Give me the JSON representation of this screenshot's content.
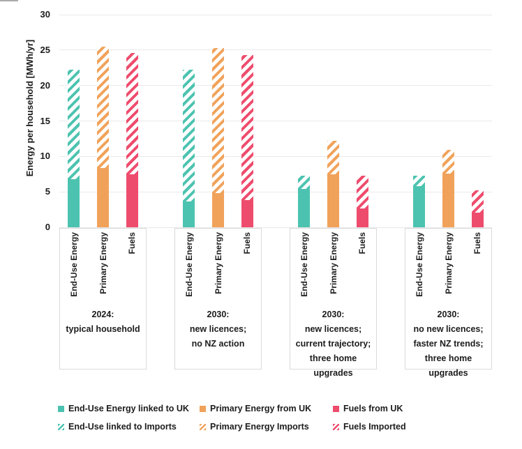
{
  "chart_data": {
    "type": "bar",
    "stacked": true,
    "title": "",
    "ylabel": "Energy per household [MWh/yr]",
    "ylim": [
      0,
      30
    ],
    "yticks": [
      0,
      5,
      10,
      15,
      20,
      25,
      30
    ],
    "grid": true,
    "legend_position": "bottom",
    "bar_categories": [
      "End-Use Energy",
      "Primary Energy",
      "Fuels"
    ],
    "series_keys": [
      "end_use",
      "primary",
      "fuels"
    ],
    "colors": {
      "end_use": "#4cc3b0",
      "primary": "#f1a25a",
      "fuels": "#ee4c6d",
      "grid": "#e9e9e9",
      "box_border": "#dadada",
      "text": "#1c1c1c"
    },
    "groups": [
      {
        "caption_lines": [
          "2024:",
          "typical household"
        ],
        "values": {
          "end_use": {
            "uk": 6.8,
            "imports": 15.4
          },
          "primary": {
            "uk": 8.4,
            "imports": 17.1
          },
          "fuels": {
            "uk": 7.5,
            "imports": 17.1
          }
        }
      },
      {
        "caption_lines": [
          "2030:",
          "new licences;",
          "no NZ action"
        ],
        "values": {
          "end_use": {
            "uk": 3.6,
            "imports": 18.6
          },
          "primary": {
            "uk": 4.8,
            "imports": 20.5
          },
          "fuels": {
            "uk": 3.8,
            "imports": 20.5
          }
        }
      },
      {
        "caption_lines": [
          "2030:",
          "new licences;",
          "current trajectory;",
          "three home",
          "upgrades"
        ],
        "values": {
          "end_use": {
            "uk": 5.4,
            "imports": 1.9
          },
          "primary": {
            "uk": 7.5,
            "imports": 4.7
          },
          "fuels": {
            "uk": 2.7,
            "imports": 4.6
          }
        }
      },
      {
        "caption_lines": [
          "2030:",
          "no new licences;",
          "faster NZ trends;",
          "three home",
          "upgrades"
        ],
        "values": {
          "end_use": {
            "uk": 5.8,
            "imports": 1.5
          },
          "primary": {
            "uk": 7.6,
            "imports": 3.3
          },
          "fuels": {
            "uk": 2.1,
            "imports": 3.1
          }
        }
      }
    ],
    "legend": [
      {
        "label": "End-Use Energy linked to UK",
        "series": "end_use",
        "pattern": "solid"
      },
      {
        "label": "Primary Energy from UK",
        "series": "primary",
        "pattern": "solid"
      },
      {
        "label": "Fuels from UK",
        "series": "fuels",
        "pattern": "solid"
      },
      {
        "label": "End-Use linked to Imports",
        "series": "end_use",
        "pattern": "hatched"
      },
      {
        "label": "Primary Energy Imports",
        "series": "primary",
        "pattern": "hatched"
      },
      {
        "label": "Fuels Imported",
        "series": "fuels",
        "pattern": "hatched"
      }
    ]
  }
}
